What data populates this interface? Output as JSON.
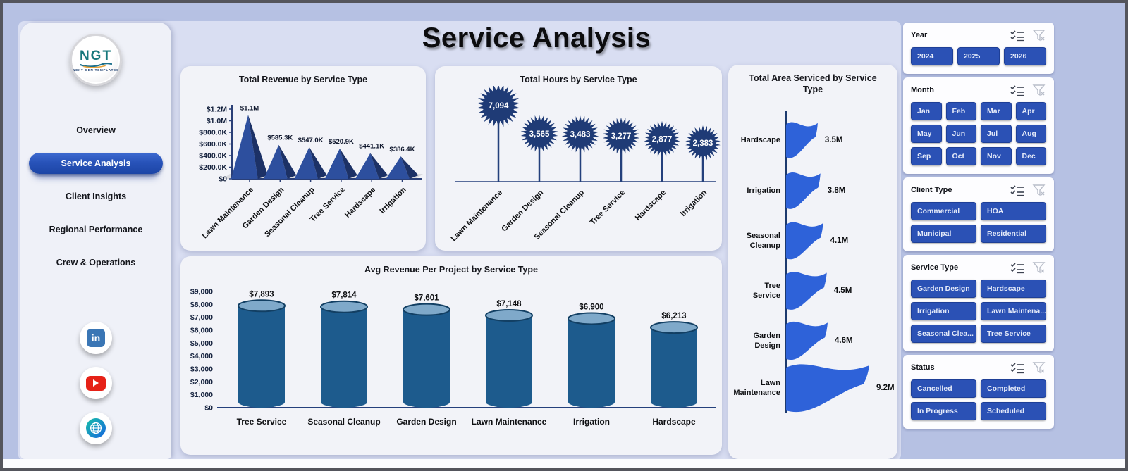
{
  "header": {
    "title": "Service Analysis"
  },
  "sidebar": {
    "logo": {
      "text": "NGT",
      "subtext": "NEXT GEN TEMPLATES"
    },
    "items": [
      {
        "label": "Overview",
        "active": false
      },
      {
        "label": "Service Analysis",
        "active": true
      },
      {
        "label": "Client Insights",
        "active": false
      },
      {
        "label": "Regional Performance",
        "active": false
      },
      {
        "label": "Crew & Operations",
        "active": false
      }
    ],
    "social": [
      {
        "name": "linkedin"
      },
      {
        "name": "youtube"
      },
      {
        "name": "website"
      }
    ]
  },
  "filters": [
    {
      "title": "Year",
      "columns": 3,
      "options": [
        "2024",
        "2025",
        "2026"
      ]
    },
    {
      "title": "Month",
      "columns": 4,
      "options": [
        "Jan",
        "Feb",
        "Mar",
        "Apr",
        "May",
        "Jun",
        "Jul",
        "Aug",
        "Sep",
        "Oct",
        "Nov",
        "Dec"
      ]
    },
    {
      "title": "Client Type",
      "columns": 2,
      "options": [
        "Commercial",
        "HOA",
        "Municipal",
        "Residential"
      ]
    },
    {
      "title": "Service Type",
      "columns": 2,
      "options": [
        "Garden Design",
        "Hardscape",
        "Irrigation",
        "Lawn Maintena...",
        "Seasonal Clea...",
        "Tree Service"
      ]
    },
    {
      "title": "Status",
      "columns": 2,
      "options": [
        "Cancelled",
        "Completed",
        "In Progress",
        "Scheduled"
      ]
    }
  ],
  "chart_data": [
    {
      "type": "bar",
      "variant": "pyramid",
      "title": "Total Revenue by Service Type",
      "categories": [
        "Lawn Maintenance",
        "Garden Design",
        "Seasonal Cleanup",
        "Tree Service",
        "Hardscape",
        "Irrigation"
      ],
      "values": [
        1100000,
        585300,
        547000,
        520900,
        441100,
        386400
      ],
      "labels": [
        "$1.1M",
        "$585.3K",
        "$547.0K",
        "$520.9K",
        "$441.1K",
        "$386.4K"
      ],
      "ytick_labels": [
        "$0",
        "$200.0K",
        "$400.0K",
        "$600.0K",
        "$800.0K",
        "$1.0M",
        "$1.2M"
      ],
      "ylim": [
        0,
        1200000
      ],
      "grid": false,
      "xlabel": "",
      "ylabel": ""
    },
    {
      "type": "lollipop",
      "variant": "starburst",
      "title": "Total Hours by Service Type",
      "categories": [
        "Lawn Maintenance",
        "Garden Design",
        "Seasonal Cleanup",
        "Tree Service",
        "Hardscape",
        "Irrigation"
      ],
      "values": [
        7094,
        3565,
        3483,
        3277,
        2877,
        2383
      ],
      "labels": [
        "7,094",
        "3,565",
        "3,483",
        "3,277",
        "2,877",
        "2,383"
      ],
      "ylim": [
        0,
        7094
      ],
      "grid": false
    },
    {
      "type": "bar",
      "variant": "flag",
      "orientation": "horizontal",
      "title": "Total Area Serviced by Service Type",
      "categories": [
        "Hardscape",
        "Irrigation",
        "Seasonal Cleanup",
        "Tree Service",
        "Garden Design",
        "Lawn Maintenance"
      ],
      "values": [
        3500000,
        3800000,
        4100000,
        4500000,
        4600000,
        9200000
      ],
      "labels": [
        "3.5M",
        "3.8M",
        "4.1M",
        "4.5M",
        "4.6M",
        "9.2M"
      ],
      "ylim": [
        0,
        9200000
      ],
      "grid": false
    },
    {
      "type": "bar",
      "variant": "cylinder",
      "title": "Avg Revenue Per Project by Service Type",
      "categories": [
        "Tree Service",
        "Seasonal Cleanup",
        "Garden Design",
        "Lawn Maintenance",
        "Irrigation",
        "Hardscape"
      ],
      "values": [
        7893,
        7814,
        7601,
        7148,
        6900,
        6213
      ],
      "labels": [
        "$7,893",
        "$7,814",
        "$7,601",
        "$7,148",
        "$6,900",
        "$6,213"
      ],
      "ytick_labels": [
        "$0",
        "$1,000",
        "$2,000",
        "$3,000",
        "$4,000",
        "$5,000",
        "$6,000",
        "$7,000",
        "$8,000",
        "$9,000"
      ],
      "ylim": [
        0,
        9000
      ],
      "grid": false
    }
  ],
  "colors": {
    "page_bg": "#b6c1e3",
    "main_bg": "#d9def2",
    "card_bg": "#f2f3f8",
    "navy": "#1f3b76",
    "pyramid_front": "#2d4f9e",
    "pyramid_side": "#1c3166",
    "cylinder_body": "#1d5b8d",
    "cylinder_top": "#7fa9ca",
    "flag_blue": "#2e62d9",
    "filter_button": "#2b51b5",
    "active_nav": "#2853b9",
    "axis_text": "#14213d"
  }
}
